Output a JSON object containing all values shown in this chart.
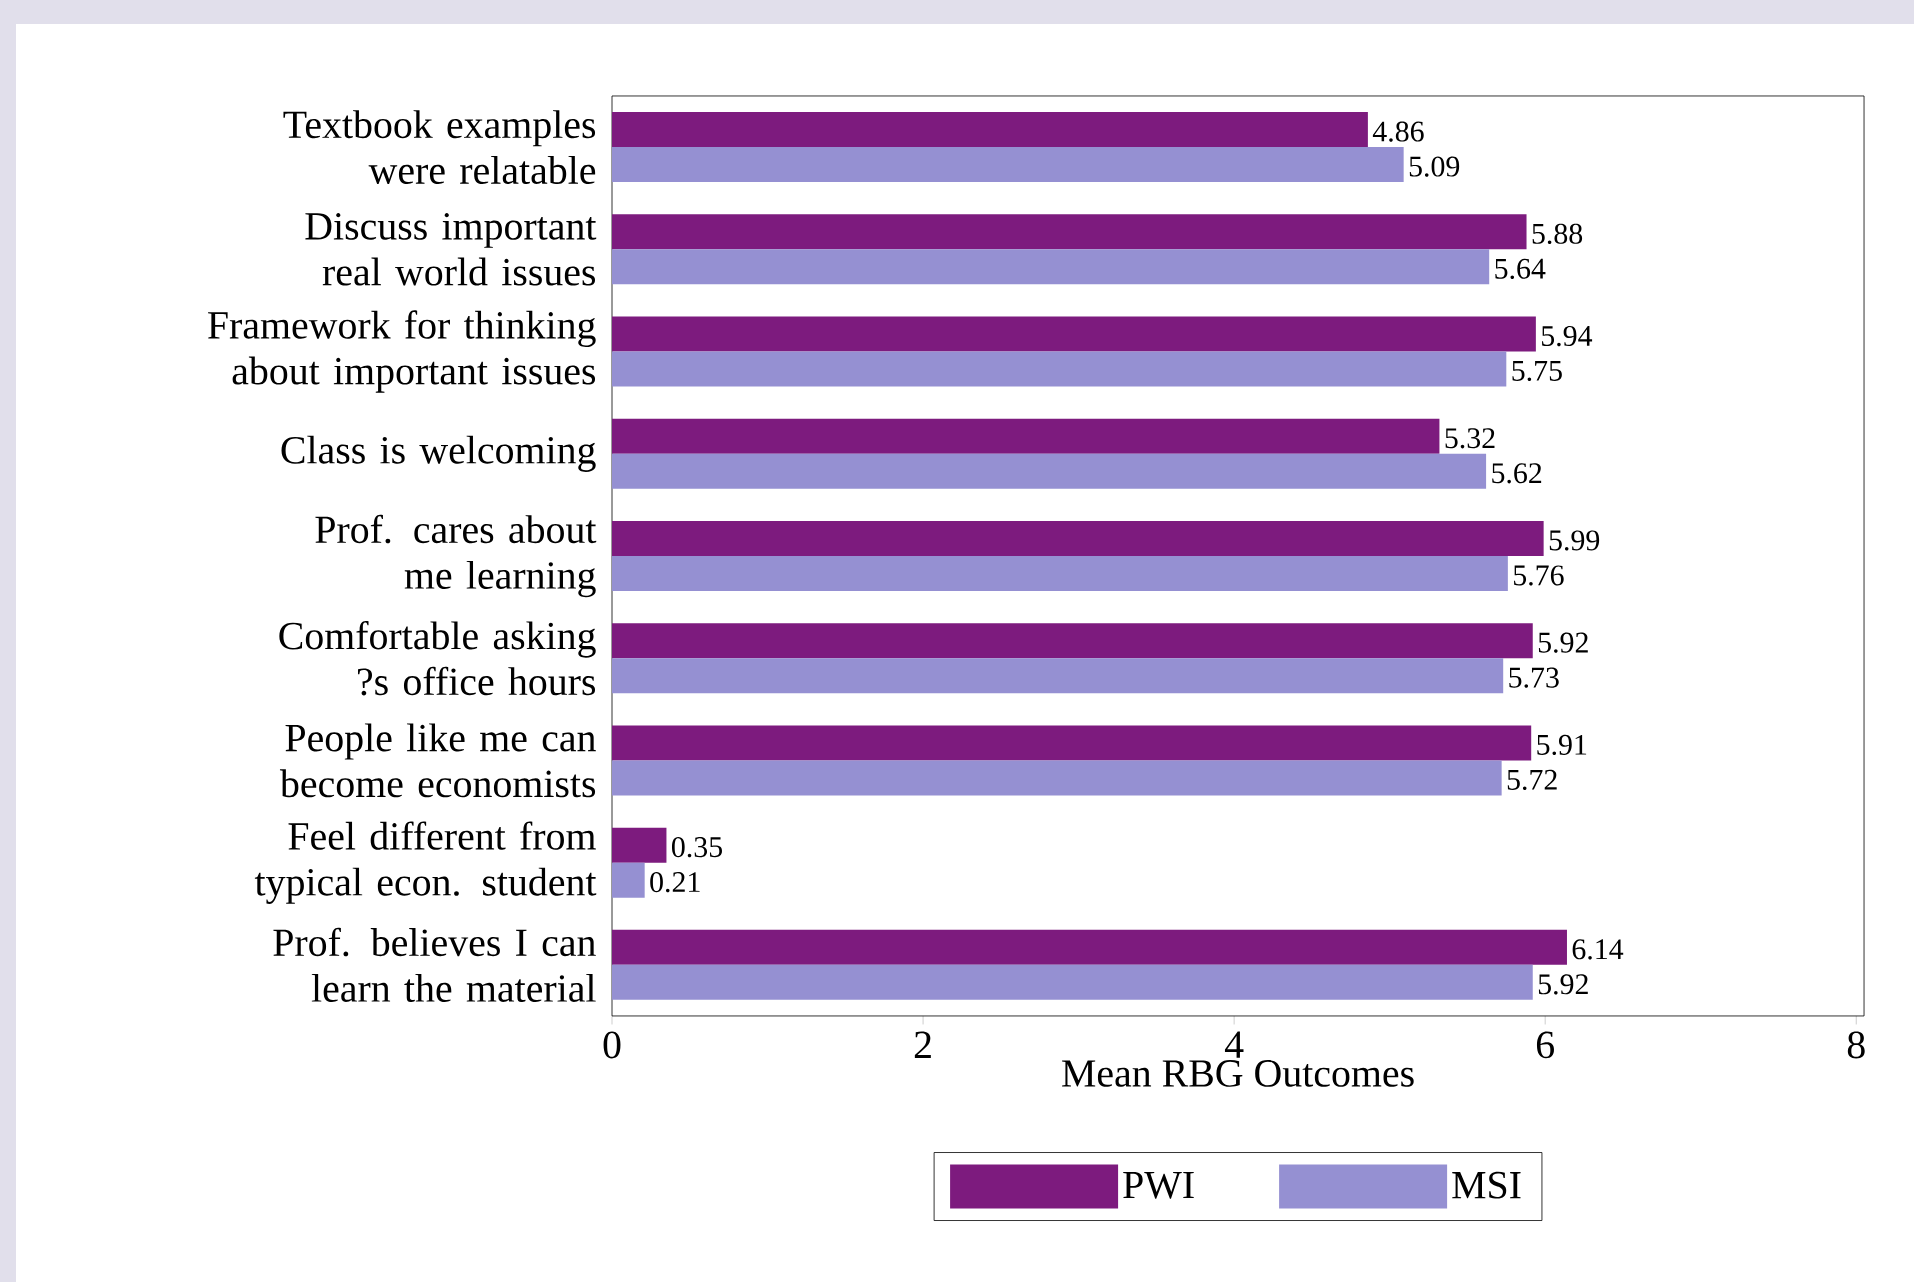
{
  "chart_data": {
    "type": "bar",
    "orientation": "horizontal",
    "xlabel": "Mean RBG Outcomes",
    "categories": [
      "Textbook examples were relatable",
      "Discuss important real world issues",
      "Framework for thinking about important issues",
      "Class is welcoming",
      "Prof. cares about me learning",
      "Comfortable asking ?s office hours",
      "People like me can become economists",
      "Feel different from typical econ. student",
      "Prof. believes I can learn the material"
    ],
    "series": [
      {
        "name": "PWI",
        "color": "#7d1b7e",
        "values": [
          4.86,
          5.88,
          5.94,
          5.32,
          5.99,
          5.92,
          5.91,
          0.35,
          6.14
        ]
      },
      {
        "name": "MSI",
        "color": "#9590d2",
        "values": [
          5.09,
          5.64,
          5.75,
          5.62,
          5.76,
          5.73,
          5.72,
          0.21,
          5.92
        ]
      }
    ],
    "xlim": [
      0,
      8.05
    ],
    "xticks": [
      0,
      2,
      4,
      6,
      8
    ],
    "data_labels": true,
    "legend": "bottom",
    "grid": false
  }
}
